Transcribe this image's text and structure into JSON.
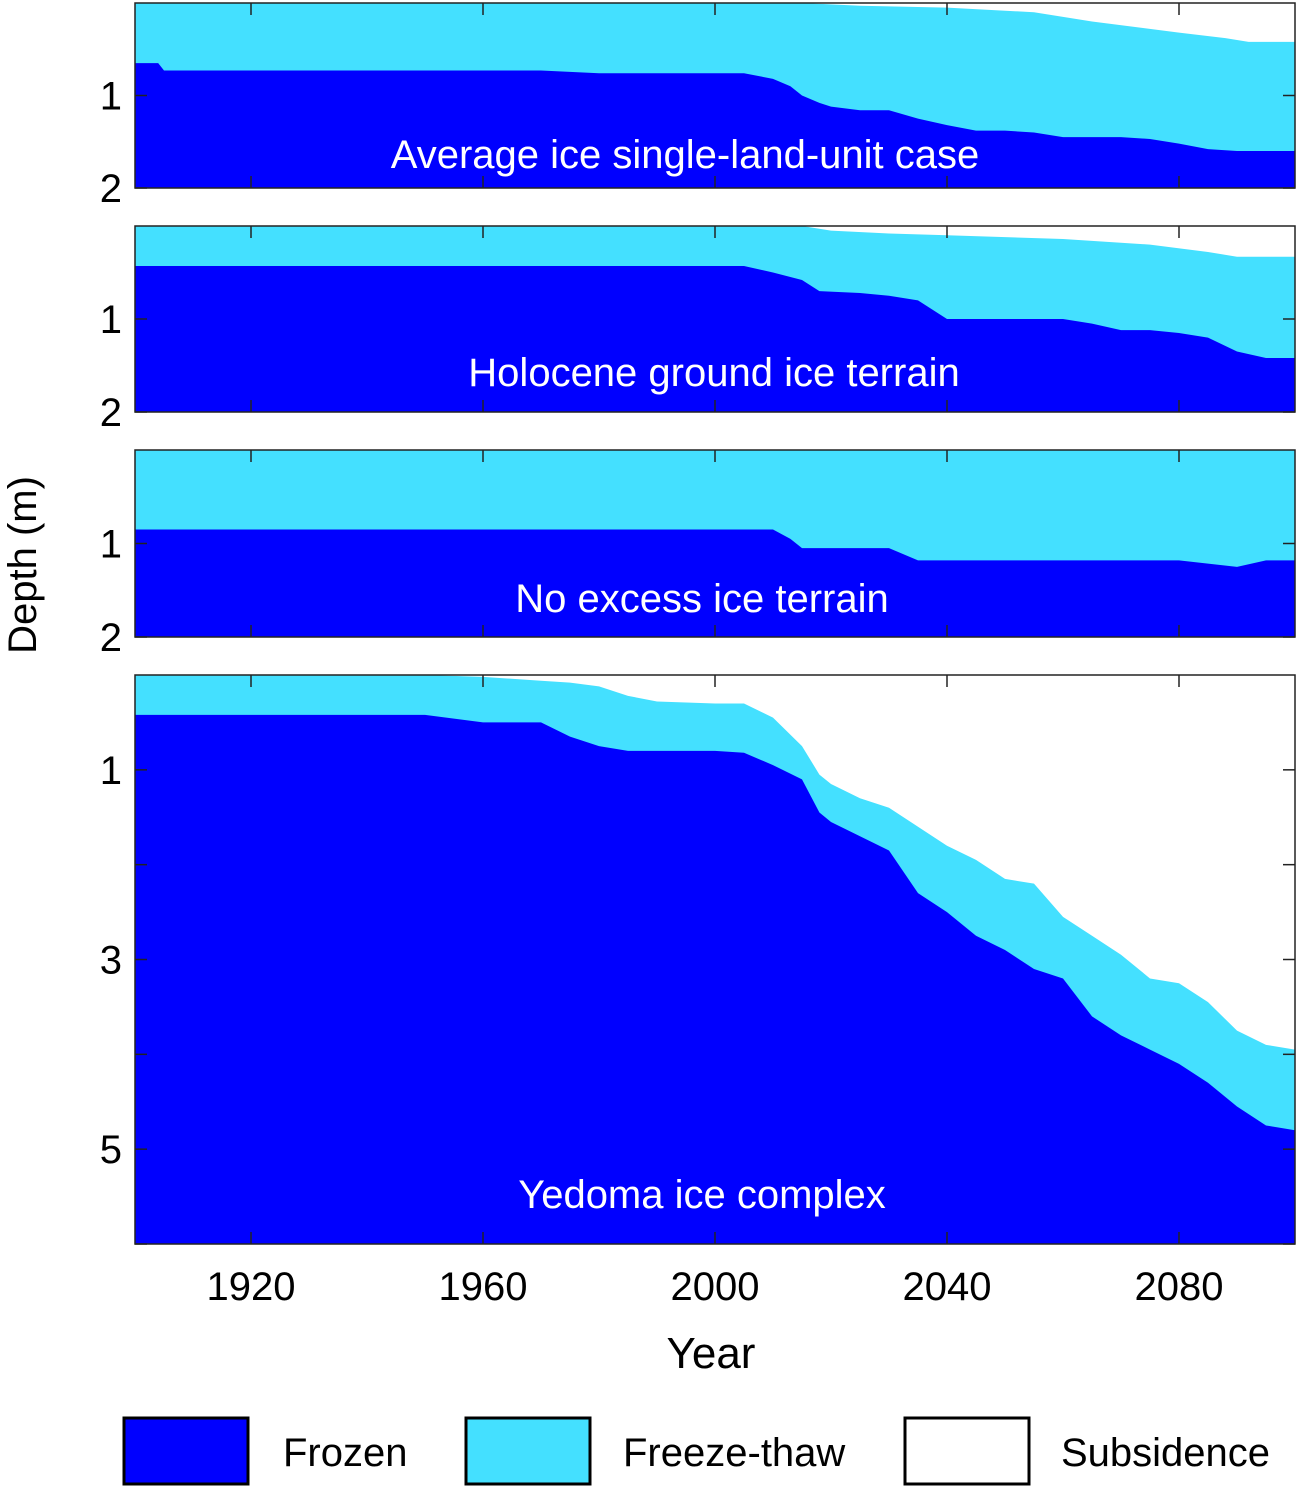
{
  "figure": {
    "ylabel": "Depth (m)",
    "xlabel": "Year",
    "x_ticks": [
      1920,
      1960,
      2000,
      2040,
      2080
    ],
    "colors": {
      "frozen": "#0000ff",
      "freeze_thaw": "#44e0ff",
      "subsidence": "#ffffff"
    }
  },
  "legend": {
    "items": [
      {
        "label": "Frozen",
        "color": "#0000ff"
      },
      {
        "label": "Freeze-thaw",
        "color": "#44e0ff"
      },
      {
        "label": "Subsidence",
        "color": "#ffffff"
      }
    ]
  },
  "chart_data": [
    {
      "type": "area",
      "title": "Average ice single-land-unit case",
      "xlim": [
        1900,
        2100
      ],
      "ylim": [
        0,
        2
      ],
      "y_ticks": [
        1,
        2
      ],
      "y_reversed": true,
      "series": [
        {
          "name": "Subsidence",
          "boundary": "surface",
          "x": [
            1900,
            2015,
            2025,
            2040,
            2055,
            2065,
            2080,
            2088,
            2092,
            2100
          ],
          "y": [
            0,
            0,
            0.03,
            0.05,
            0.1,
            0.2,
            0.32,
            0.38,
            0.42,
            0.42
          ]
        },
        {
          "name": "Freeze-thaw",
          "boundary": "frozen_top",
          "x": [
            1900,
            1904,
            1905,
            1910,
            1920,
            1930,
            1940,
            1950,
            1960,
            1970,
            1980,
            1990,
            2000,
            2005,
            2010,
            2013,
            2015,
            2018,
            2020,
            2025,
            2030,
            2035,
            2040,
            2045,
            2050,
            2055,
            2060,
            2065,
            2070,
            2075,
            2080,
            2085,
            2090,
            2095,
            2100
          ],
          "y": [
            0.65,
            0.65,
            0.73,
            0.73,
            0.73,
            0.73,
            0.73,
            0.73,
            0.73,
            0.73,
            0.76,
            0.76,
            0.76,
            0.76,
            0.82,
            0.9,
            1.0,
            1.08,
            1.12,
            1.16,
            1.16,
            1.25,
            1.32,
            1.38,
            1.38,
            1.4,
            1.45,
            1.45,
            1.45,
            1.47,
            1.52,
            1.58,
            1.6,
            1.6,
            1.6
          ]
        }
      ]
    },
    {
      "type": "area",
      "title": "Holocene ground ice terrain",
      "xlim": [
        1900,
        2100
      ],
      "ylim": [
        0,
        2
      ],
      "y_ticks": [
        1,
        2
      ],
      "y_reversed": true,
      "series": [
        {
          "name": "Subsidence",
          "boundary": "surface",
          "x": [
            1900,
            2015,
            2020,
            2030,
            2040,
            2060,
            2075,
            2085,
            2090,
            2100
          ],
          "y": [
            0,
            0,
            0.05,
            0.08,
            0.1,
            0.14,
            0.2,
            0.28,
            0.33,
            0.33
          ]
        },
        {
          "name": "Freeze-thaw",
          "boundary": "frozen_top",
          "x": [
            1900,
            1910,
            1920,
            1940,
            1960,
            1980,
            2000,
            2005,
            2010,
            2015,
            2018,
            2025,
            2030,
            2035,
            2040,
            2045,
            2050,
            2055,
            2060,
            2065,
            2070,
            2075,
            2080,
            2085,
            2090,
            2095,
            2100
          ],
          "y": [
            0.43,
            0.43,
            0.43,
            0.43,
            0.43,
            0.43,
            0.43,
            0.43,
            0.5,
            0.58,
            0.7,
            0.72,
            0.75,
            0.8,
            1.0,
            1.0,
            1.0,
            1.0,
            1.0,
            1.05,
            1.12,
            1.12,
            1.15,
            1.2,
            1.35,
            1.42,
            1.42
          ]
        }
      ]
    },
    {
      "type": "area",
      "title": "No excess ice terrain",
      "xlim": [
        1900,
        2100
      ],
      "ylim": [
        0,
        2
      ],
      "y_ticks": [
        1,
        2
      ],
      "y_reversed": true,
      "series": [
        {
          "name": "Freeze-thaw",
          "boundary": "frozen_top",
          "x": [
            1900,
            1910,
            1920,
            1940,
            1960,
            1980,
            2000,
            2010,
            2013,
            2015,
            2020,
            2030,
            2035,
            2040,
            2050,
            2060,
            2070,
            2080,
            2090,
            2095,
            2100
          ],
          "y": [
            0.85,
            0.85,
            0.85,
            0.85,
            0.85,
            0.85,
            0.85,
            0.85,
            0.95,
            1.05,
            1.05,
            1.05,
            1.18,
            1.18,
            1.18,
            1.18,
            1.18,
            1.18,
            1.25,
            1.18,
            1.18
          ]
        }
      ]
    },
    {
      "type": "area",
      "title": "Yedoma ice complex",
      "xlim": [
        1900,
        2100
      ],
      "ylim": [
        0,
        6
      ],
      "y_ticks": [
        1,
        3,
        5
      ],
      "y_reversed": true,
      "series": [
        {
          "name": "Subsidence",
          "boundary": "surface",
          "x": [
            1900,
            1950,
            1960,
            1970,
            1975,
            1980,
            1985,
            1990,
            2000,
            2005,
            2010,
            2015,
            2018,
            2020,
            2025,
            2030,
            2035,
            2040,
            2045,
            2050,
            2055,
            2060,
            2065,
            2070,
            2075,
            2080,
            2085,
            2090,
            2095,
            2100
          ],
          "y": [
            0,
            0,
            0.02,
            0.06,
            0.08,
            0.12,
            0.22,
            0.28,
            0.3,
            0.3,
            0.45,
            0.75,
            1.05,
            1.15,
            1.3,
            1.4,
            1.6,
            1.8,
            1.95,
            2.15,
            2.2,
            2.55,
            2.75,
            2.95,
            3.2,
            3.25,
            3.45,
            3.75,
            3.9,
            3.95
          ]
        },
        {
          "name": "Freeze-thaw",
          "boundary": "frozen_top",
          "x": [
            1900,
            1920,
            1940,
            1950,
            1960,
            1965,
            1970,
            1975,
            1980,
            1985,
            1990,
            2000,
            2005,
            2010,
            2015,
            2018,
            2020,
            2025,
            2030,
            2035,
            2040,
            2045,
            2050,
            2055,
            2060,
            2065,
            2070,
            2075,
            2080,
            2085,
            2090,
            2095,
            2100
          ],
          "y": [
            0.42,
            0.42,
            0.42,
            0.42,
            0.5,
            0.5,
            0.5,
            0.65,
            0.75,
            0.8,
            0.8,
            0.8,
            0.82,
            0.95,
            1.1,
            1.45,
            1.55,
            1.7,
            1.85,
            2.3,
            2.5,
            2.75,
            2.9,
            3.1,
            3.2,
            3.6,
            3.8,
            3.95,
            4.1,
            4.3,
            4.55,
            4.75,
            4.8
          ]
        }
      ]
    }
  ]
}
